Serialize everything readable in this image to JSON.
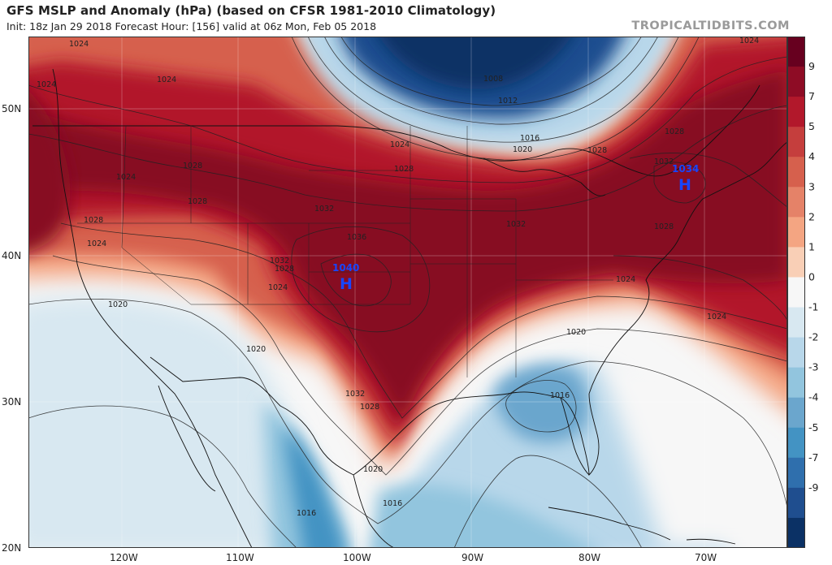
{
  "header": {
    "title": "GFS MSLP and Anomaly (hPa) (based on CFSR 1981-2010 Climatology)",
    "subtitle": "Init: 18z Jan 29 2018   Forecast Hour: [156]   valid at 06z Mon, Feb 05 2018",
    "brand": "TROPICALTIDBITS.COM"
  },
  "axes": {
    "lat_labels": [
      "50N",
      "40N",
      "30N",
      "20N"
    ],
    "lon_labels": [
      "120W",
      "110W",
      "100W",
      "90W",
      "80W",
      "70W"
    ]
  },
  "pressure_centers": [
    {
      "label": "H",
      "value": "1040"
    },
    {
      "label": "H",
      "value": "1034"
    }
  ],
  "isobar_labels": [
    "1024",
    "1024",
    "1024",
    "1028",
    "1028",
    "1028",
    "1024",
    "1032",
    "1036",
    "1032",
    "1028",
    "1024",
    "1020",
    "1020",
    "1032",
    "1028",
    "1020",
    "1016",
    "1016",
    "1008",
    "1012",
    "1016",
    "1020",
    "1024",
    "1028",
    "1032",
    "1028",
    "1032",
    "1028",
    "1024",
    "1020",
    "1024",
    "1024",
    "1028",
    "1016",
    "1024"
  ],
  "colorbar": {
    "labels": [
      "9",
      "7",
      "5",
      "4",
      "3",
      "2",
      "1",
      "0",
      "-1",
      "-2",
      "-3",
      "-4",
      "-5",
      "-7",
      "-9"
    ],
    "colors": [
      "#67001f",
      "#8e0c25",
      "#b2182b",
      "#c53e3d",
      "#d6604d",
      "#e58268",
      "#f4a582",
      "#f9cfb6",
      "#f7f7f7",
      "#d8e8f1",
      "#b8d7ea",
      "#92c5de",
      "#6ba6cd",
      "#4393c3",
      "#2f6fad",
      "#1f4e8f",
      "#0b3165"
    ]
  },
  "colors": {
    "strong_high": "#870b22",
    "high": "#c53e3d",
    "weak_high": "#f4a582",
    "neutral": "#f7f7f7",
    "weak_low": "#b8d7ea",
    "low": "#4393c3",
    "strong_low": "#0b3165",
    "high_center_marker": "#1746ff"
  }
}
